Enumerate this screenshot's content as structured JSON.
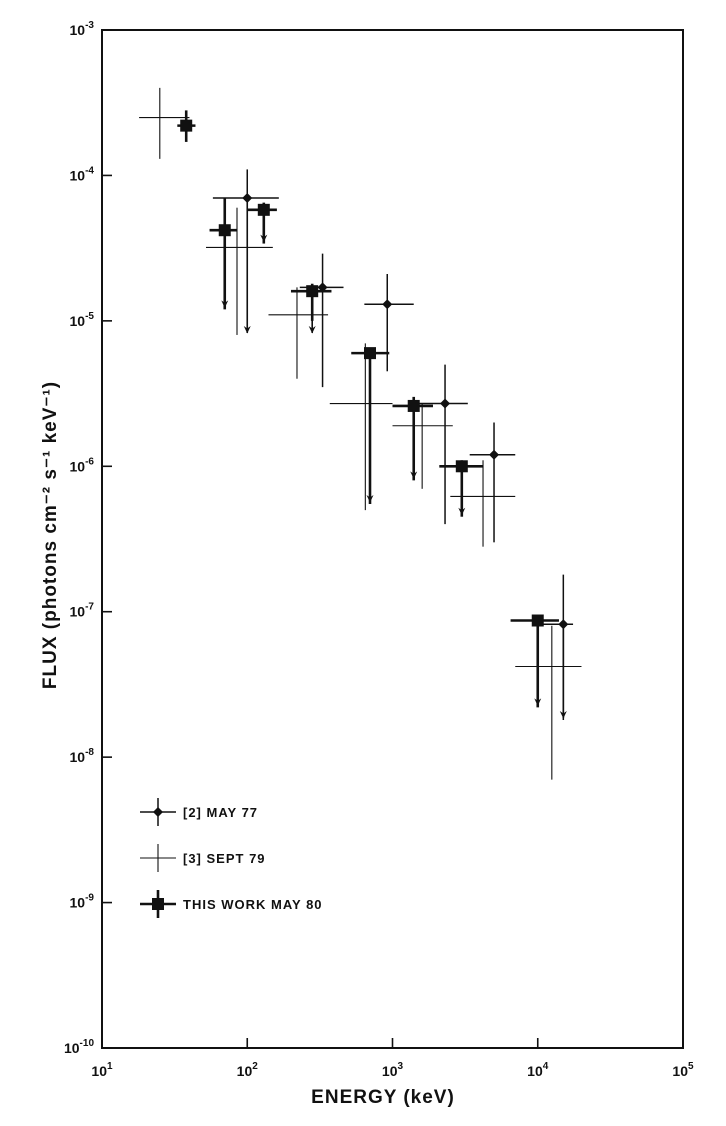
{
  "chart_data": {
    "type": "scatter",
    "title": "",
    "xlabel": "ENERGY (keV)",
    "ylabel": "FLUX (photons cm⁻² s⁻¹ keV⁻¹)",
    "xscale": "log",
    "yscale": "log",
    "xlim": [
      10,
      100000
    ],
    "ylim": [
      1e-10,
      0.001
    ],
    "grid": false,
    "legend_position": "bottom-left",
    "x_ticks": [
      {
        "base": "10",
        "exp": "1"
      },
      {
        "base": "10",
        "exp": "2"
      },
      {
        "base": "10",
        "exp": "3"
      },
      {
        "base": "10",
        "exp": "4"
      },
      {
        "base": "10",
        "exp": "5"
      }
    ],
    "y_ticks": [
      {
        "base": "10",
        "exp": "-3"
      },
      {
        "base": "10",
        "exp": "-4"
      },
      {
        "base": "10",
        "exp": "-5"
      },
      {
        "base": "10",
        "exp": "-6"
      },
      {
        "base": "10",
        "exp": "-7"
      },
      {
        "base": "10",
        "exp": "-8"
      },
      {
        "base": "10",
        "exp": "-9"
      },
      {
        "base": "10",
        "exp": "-10"
      }
    ],
    "series": [
      {
        "name": "[2] MAY 77",
        "marker": "diamond",
        "points": [
          {
            "x": 100,
            "y": 7e-05,
            "xlo": 58,
            "xhi": 165,
            "ylo": 2.6e-05,
            "yhi": 0.00011,
            "upper_limit": true,
            "limit_to": 8e-06
          },
          {
            "x": 330,
            "y": 1.7e-05,
            "xlo": 230,
            "xhi": 460,
            "ylo": 3.5e-06,
            "yhi": 2.9e-05,
            "upper_limit": false
          },
          {
            "x": 920,
            "y": 1.3e-05,
            "xlo": 640,
            "xhi": 1400,
            "ylo": 4.5e-06,
            "yhi": 2.1e-05,
            "upper_limit": false
          },
          {
            "x": 2300,
            "y": 2.7e-06,
            "xlo": 1500,
            "xhi": 3300,
            "ylo": 4e-07,
            "yhi": 5e-06,
            "upper_limit": false
          },
          {
            "x": 5000,
            "y": 1.2e-06,
            "xlo": 3400,
            "xhi": 7000,
            "ylo": 3e-07,
            "yhi": 2e-06,
            "upper_limit": false
          },
          {
            "x": 15000,
            "y": 8.2e-08,
            "xlo": 10000,
            "xhi": 17500,
            "ylo": 1.8e-08,
            "yhi": 1.8e-07,
            "upper_limit": true,
            "limit_to": 1.8e-08
          }
        ]
      },
      {
        "name": "[3] SEPT 79",
        "marker": "none",
        "points": [
          {
            "x": 25,
            "y": 0.00025,
            "xlo": 18,
            "xhi": 40,
            "ylo": 0.00013,
            "yhi": 0.0004
          },
          {
            "x": 85,
            "y": 3.2e-05,
            "xlo": 52,
            "xhi": 150,
            "ylo": 8e-06,
            "yhi": 6e-05
          },
          {
            "x": 220,
            "y": 1.1e-05,
            "xlo": 140,
            "xhi": 360,
            "ylo": 4e-06,
            "yhi": 1.7e-05
          },
          {
            "x": 650,
            "y": 2.7e-06,
            "xlo": 370,
            "xhi": 1000,
            "ylo": 5e-07,
            "yhi": 7e-06
          },
          {
            "x": 1600,
            "y": 1.9e-06,
            "xlo": 1000,
            "xhi": 2600,
            "ylo": 7e-07,
            "yhi": 2.7e-06
          },
          {
            "x": 4200,
            "y": 6.2e-07,
            "xlo": 2500,
            "xhi": 7000,
            "ylo": 2.8e-07,
            "yhi": 1.1e-06
          },
          {
            "x": 12500,
            "y": 4.2e-08,
            "xlo": 7000,
            "xhi": 20000,
            "ylo": 7e-09,
            "yhi": 8e-08
          }
        ]
      },
      {
        "name": "THIS WORK MAY 80",
        "marker": "square",
        "points": [
          {
            "x": 38,
            "y": 0.00022,
            "xlo": 33,
            "xhi": 44,
            "ylo": 0.00017,
            "yhi": 0.00028,
            "upper_limit": false
          },
          {
            "x": 70,
            "y": 4.2e-05,
            "xlo": 55,
            "xhi": 85,
            "ylo": 1.2e-05,
            "yhi": 7e-05,
            "upper_limit": true,
            "limit_to": 1.2e-05
          },
          {
            "x": 130,
            "y": 5.8e-05,
            "xlo": 100,
            "xhi": 160,
            "ylo": 3.4e-05,
            "yhi": 6.5e-05,
            "upper_limit": true,
            "limit_to": 3.4e-05
          },
          {
            "x": 280,
            "y": 1.6e-05,
            "xlo": 200,
            "xhi": 380,
            "ylo": 1e-05,
            "yhi": 1.8e-05,
            "upper_limit": true,
            "limit_to": 8e-06
          },
          {
            "x": 700,
            "y": 6e-06,
            "xlo": 520,
            "xhi": 950,
            "ylo": 5.5e-07,
            "yhi": 6.5e-06,
            "upper_limit": true,
            "limit_to": 5.5e-07
          },
          {
            "x": 1400,
            "y": 2.6e-06,
            "xlo": 1000,
            "xhi": 1900,
            "ylo": 8e-07,
            "yhi": 3e-06,
            "upper_limit": true,
            "limit_to": 8e-07
          },
          {
            "x": 3000,
            "y": 1e-06,
            "xlo": 2100,
            "xhi": 4200,
            "ylo": 4.5e-07,
            "yhi": 1.1e-06,
            "upper_limit": true,
            "limit_to": 4.5e-07
          },
          {
            "x": 10000,
            "y": 8.7e-08,
            "xlo": 6500,
            "xhi": 14000,
            "ylo": 2.2e-08,
            "yhi": 9.5e-08,
            "upper_limit": true,
            "limit_to": 2.2e-08
          }
        ]
      }
    ]
  }
}
